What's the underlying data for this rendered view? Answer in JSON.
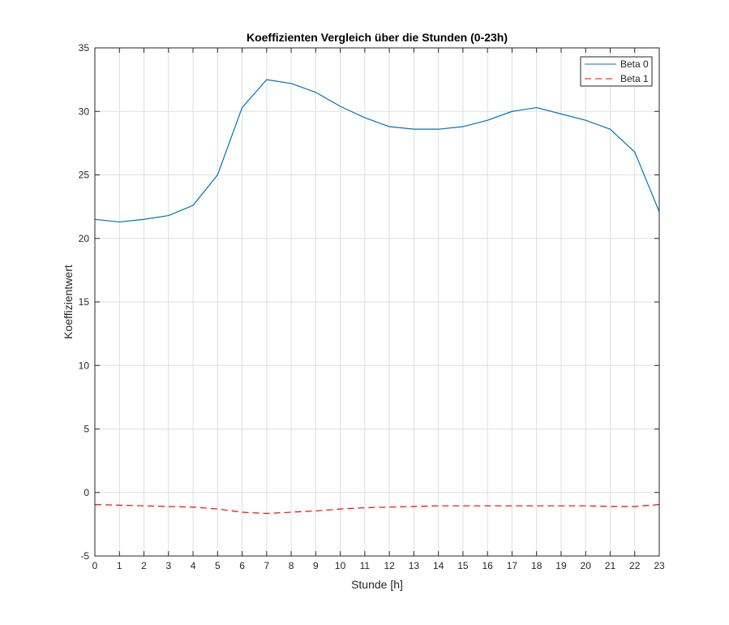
{
  "chart_data": {
    "type": "line",
    "title": "Koeffizienten Vergleich über die Stunden (0-23h)",
    "xlabel": "Stunde [h]",
    "ylabel": "Koeffizientwert",
    "xlim": [
      0,
      23
    ],
    "ylim": [
      -5,
      35
    ],
    "x_ticks": [
      0,
      1,
      2,
      3,
      4,
      5,
      6,
      7,
      8,
      9,
      10,
      11,
      12,
      13,
      14,
      15,
      16,
      17,
      18,
      19,
      20,
      21,
      22,
      23
    ],
    "y_ticks": [
      -5,
      0,
      5,
      10,
      15,
      20,
      25,
      30,
      35
    ],
    "grid": true,
    "legend_position": "top-right",
    "x": [
      0,
      1,
      2,
      3,
      4,
      5,
      6,
      7,
      8,
      9,
      10,
      11,
      12,
      13,
      14,
      15,
      16,
      17,
      18,
      19,
      20,
      21,
      22,
      23
    ],
    "series": [
      {
        "name": "Beta 0",
        "color": "#0072bd",
        "line_style": "solid",
        "values": [
          21.5,
          21.3,
          21.5,
          21.8,
          22.6,
          25.0,
          30.3,
          32.5,
          32.2,
          31.5,
          30.4,
          29.5,
          28.8,
          28.6,
          28.6,
          28.8,
          29.3,
          30.0,
          30.3,
          29.8,
          29.3,
          28.6,
          26.8,
          22.1
        ]
      },
      {
        "name": "Beta 1",
        "color": "#ff0000",
        "line_style": "dashed",
        "values": [
          -0.95,
          -1.0,
          -1.05,
          -1.1,
          -1.15,
          -1.3,
          -1.55,
          -1.65,
          -1.55,
          -1.45,
          -1.3,
          -1.2,
          -1.15,
          -1.1,
          -1.05,
          -1.05,
          -1.05,
          -1.05,
          -1.05,
          -1.05,
          -1.05,
          -1.1,
          -1.1,
          -0.95
        ]
      }
    ]
  }
}
